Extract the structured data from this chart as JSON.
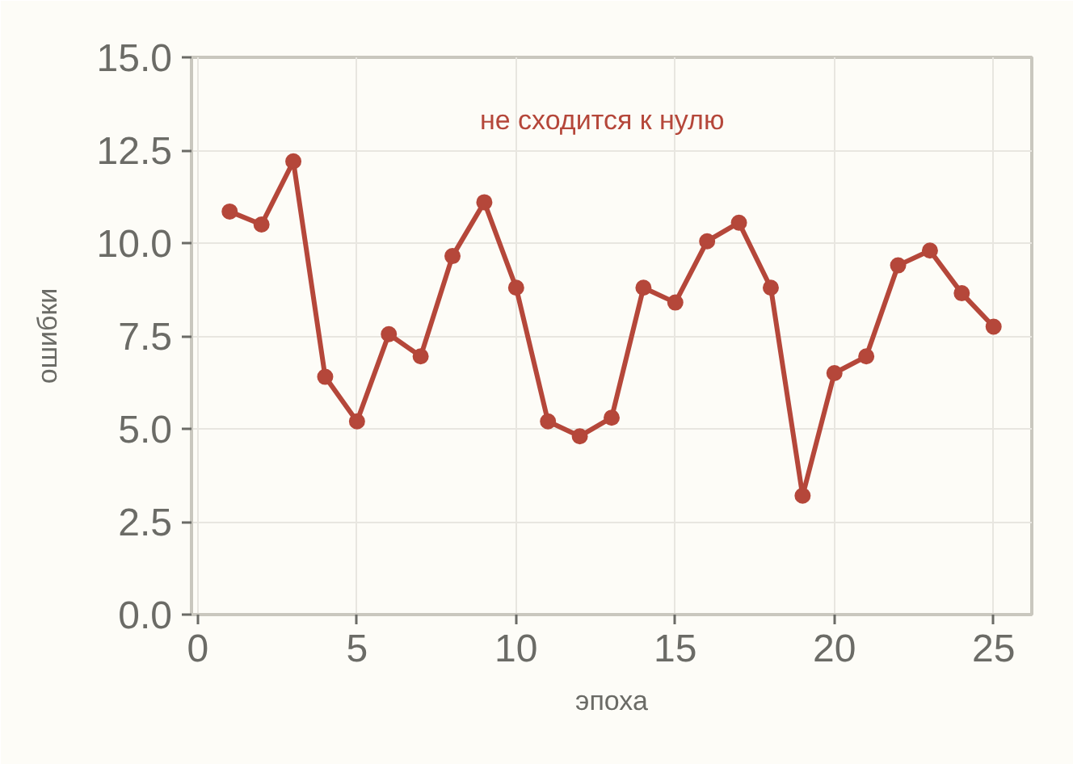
{
  "chart_data": {
    "type": "line",
    "xlabel": "эпоха",
    "ylabel": "ошибки",
    "annotations": [
      "не сходится к нулю"
    ],
    "x": [
      1,
      2,
      3,
      4,
      5,
      6,
      7,
      8,
      9,
      10,
      11,
      12,
      13,
      14,
      15,
      16,
      17,
      18,
      19,
      20,
      21,
      22,
      23,
      24,
      25
    ],
    "series": [
      {
        "color": "#b5473a",
        "values": [
          10.85,
          10.5,
          12.2,
          6.4,
          5.2,
          7.55,
          6.95,
          9.65,
          11.1,
          8.8,
          5.2,
          4.8,
          5.3,
          8.8,
          8.4,
          10.05,
          10.55,
          8.8,
          3.2,
          6.5,
          6.95,
          9.4,
          9.8,
          8.65,
          7.75
        ]
      }
    ],
    "xlim": [
      -0.2,
      26.2
    ],
    "xticks": [
      0,
      5,
      10,
      15,
      20,
      25
    ],
    "ylim": [
      0,
      15
    ],
    "yticks": [
      {
        "value": 0,
        "label": "0.0"
      },
      2.5,
      {
        "value": 5,
        "label": "5.0"
      },
      7.5,
      {
        "value": 10,
        "label": "10.0"
      },
      12.5,
      {
        "value": 15,
        "label": "15.0"
      }
    ],
    "grid": true,
    "marker": "circle",
    "line_style": "solid"
  }
}
